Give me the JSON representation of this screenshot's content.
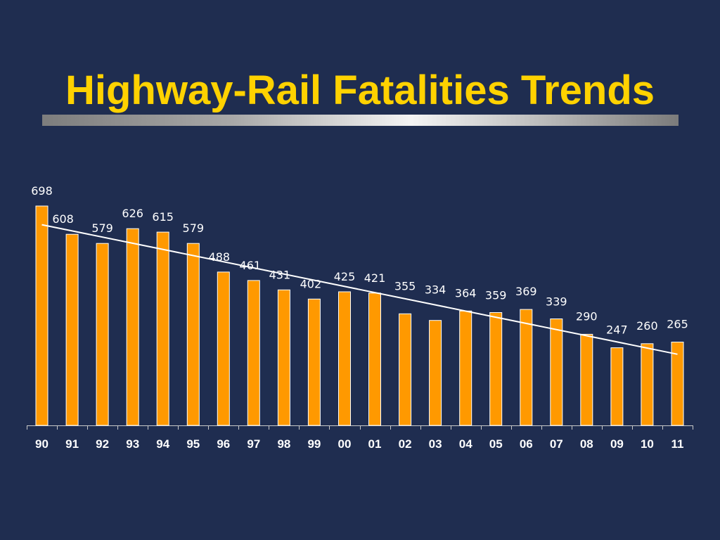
{
  "slide": {
    "title": "Highway-Rail Fatalities Trends",
    "title_color": "#ffd200",
    "background_color": "#1f2d50"
  },
  "chart_data": {
    "type": "bar",
    "title": "",
    "xlabel": "",
    "ylabel": "",
    "categories": [
      "90",
      "91",
      "92",
      "93",
      "94",
      "95",
      "96",
      "97",
      "98",
      "99",
      "00",
      "01",
      "02",
      "03",
      "04",
      "05",
      "06",
      "07",
      "08",
      "09",
      "10",
      "11"
    ],
    "series": [
      {
        "values": [
          698,
          608,
          579,
          626,
          615,
          579,
          488,
          461,
          431,
          402,
          425,
          421,
          355,
          334,
          364,
          359,
          369,
          339,
          290,
          247,
          260,
          265
        ],
        "color": "#ff9900"
      }
    ],
    "data_labels": [
      "698",
      "608",
      "579",
      "626",
      "615",
      "579",
      "488",
      "461",
      "431",
      "402",
      "425",
      "421",
      "355",
      "334",
      "364",
      "359",
      "369",
      "339",
      "290",
      "247",
      "260",
      "265"
    ],
    "trendline": {
      "type": "linear",
      "color": "#ffffff"
    },
    "ylim": [
      0,
      698
    ],
    "grid": false,
    "legend": "none"
  }
}
